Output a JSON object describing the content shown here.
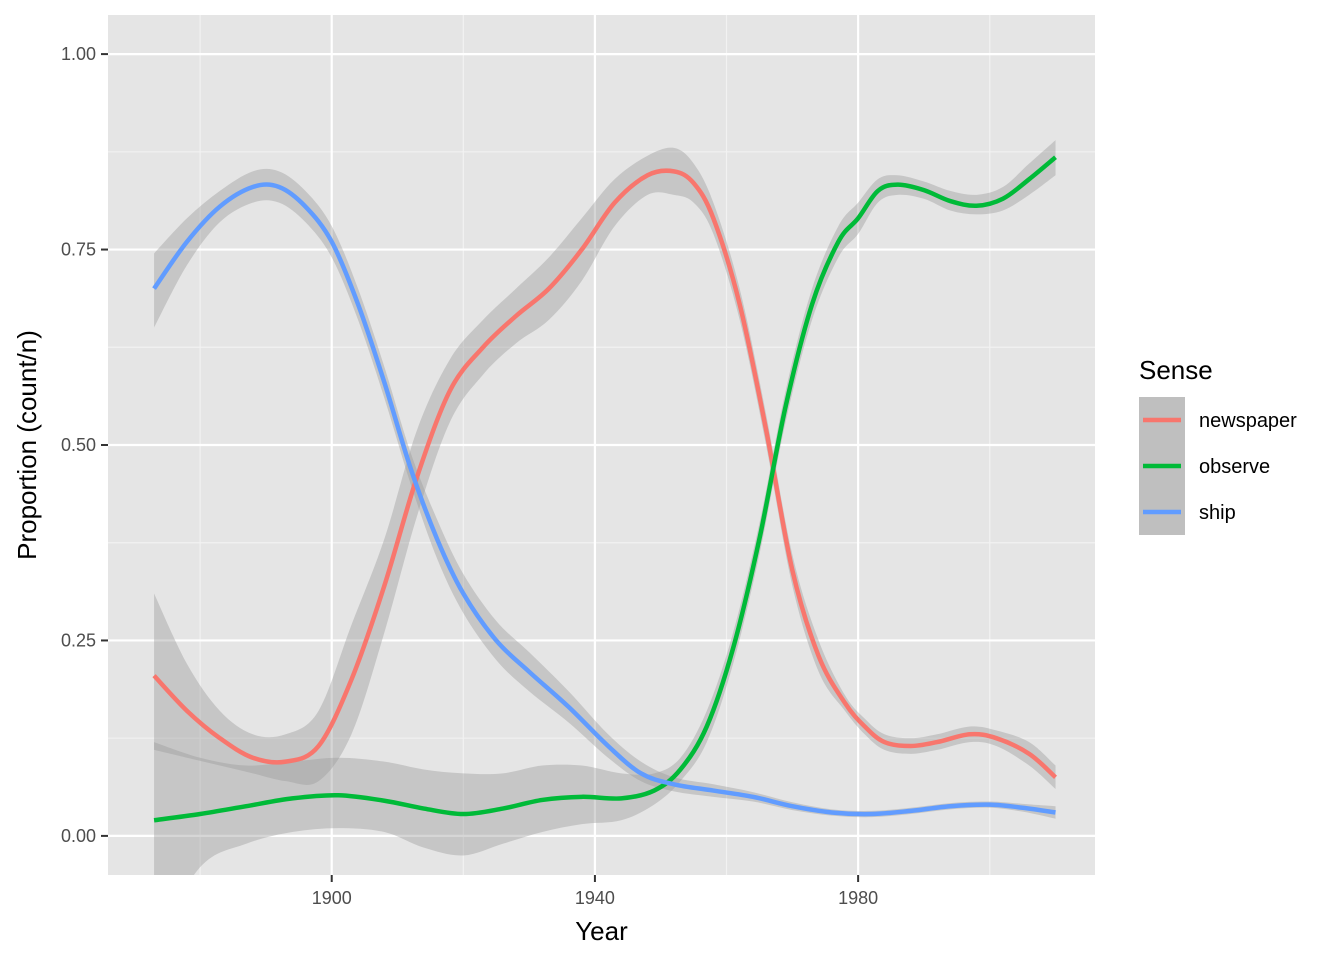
{
  "chart_data": {
    "type": "line",
    "xlabel": "Year",
    "ylabel": "Proportion (count/n)",
    "xlim": [
      1866,
      2016
    ],
    "ylim": [
      -0.05,
      1.05
    ],
    "x_ticks": [
      1900,
      1940,
      1980
    ],
    "x_tick_labels": [
      "1900",
      "1940",
      "1980"
    ],
    "y_ticks": [
      0,
      0.25,
      0.5,
      0.75,
      1
    ],
    "y_tick_labels": [
      "0.00",
      "0.25",
      "0.50",
      "0.75",
      "1.00"
    ],
    "grid": true,
    "legend": {
      "title": "Sense",
      "position": "right"
    },
    "series": [
      {
        "name": "newspaper",
        "color": "#F8766D",
        "points": [
          [
            1873,
            0.205,
            0.11,
            0.31
          ],
          [
            1878,
            0.16,
            0.1,
            0.22
          ],
          [
            1883,
            0.125,
            0.09,
            0.16
          ],
          [
            1888,
            0.1,
            0.08,
            0.13
          ],
          [
            1893,
            0.095,
            0.07,
            0.13
          ],
          [
            1898,
            0.115,
            0.07,
            0.16
          ],
          [
            1903,
            0.2,
            0.13,
            0.27
          ],
          [
            1908,
            0.32,
            0.26,
            0.38
          ],
          [
            1913,
            0.46,
            0.41,
            0.52
          ],
          [
            1918,
            0.57,
            0.53,
            0.61
          ],
          [
            1923,
            0.625,
            0.59,
            0.66
          ],
          [
            1928,
            0.665,
            0.63,
            0.7
          ],
          [
            1933,
            0.7,
            0.66,
            0.74
          ],
          [
            1938,
            0.75,
            0.71,
            0.79
          ],
          [
            1943,
            0.81,
            0.78,
            0.84
          ],
          [
            1948,
            0.845,
            0.82,
            0.87
          ],
          [
            1952,
            0.85,
            0.82,
            0.88
          ],
          [
            1955,
            0.835,
            0.81,
            0.86
          ],
          [
            1958,
            0.79,
            0.77,
            0.81
          ],
          [
            1962,
            0.68,
            0.66,
            0.7
          ],
          [
            1966,
            0.52,
            0.5,
            0.54
          ],
          [
            1970,
            0.34,
            0.32,
            0.36
          ],
          [
            1974,
            0.23,
            0.21,
            0.25
          ],
          [
            1978,
            0.17,
            0.16,
            0.18
          ],
          [
            1981,
            0.14,
            0.13,
            0.15
          ],
          [
            1984,
            0.12,
            0.11,
            0.13
          ],
          [
            1988,
            0.115,
            0.105,
            0.125
          ],
          [
            1992,
            0.12,
            0.11,
            0.13
          ],
          [
            1997,
            0.13,
            0.12,
            0.14
          ],
          [
            2001,
            0.125,
            0.115,
            0.135
          ],
          [
            2006,
            0.105,
            0.09,
            0.12
          ],
          [
            2010,
            0.075,
            0.06,
            0.09
          ]
        ]
      },
      {
        "name": "observe",
        "color": "#00BA38",
        "points": [
          [
            1873,
            0.02,
            -0.14,
            0.12
          ],
          [
            1880,
            0.028,
            -0.04,
            0.1
          ],
          [
            1887,
            0.038,
            -0.01,
            0.09
          ],
          [
            1894,
            0.048,
            0.005,
            0.095
          ],
          [
            1901,
            0.052,
            0.01,
            0.1
          ],
          [
            1908,
            0.045,
            0.005,
            0.095
          ],
          [
            1914,
            0.035,
            -0.015,
            0.085
          ],
          [
            1920,
            0.028,
            -0.025,
            0.08
          ],
          [
            1926,
            0.035,
            -0.01,
            0.08
          ],
          [
            1932,
            0.046,
            0.005,
            0.09
          ],
          [
            1938,
            0.05,
            0.015,
            0.09
          ],
          [
            1944,
            0.048,
            0.02,
            0.08
          ],
          [
            1949,
            0.058,
            0.04,
            0.08
          ],
          [
            1953,
            0.085,
            0.07,
            0.1
          ],
          [
            1957,
            0.14,
            0.12,
            0.16
          ],
          [
            1961,
            0.24,
            0.22,
            0.26
          ],
          [
            1965,
            0.38,
            0.36,
            0.4
          ],
          [
            1969,
            0.55,
            0.53,
            0.57
          ],
          [
            1973,
            0.68,
            0.66,
            0.7
          ],
          [
            1977,
            0.76,
            0.74,
            0.78
          ],
          [
            1980,
            0.79,
            0.77,
            0.81
          ],
          [
            1983,
            0.825,
            0.81,
            0.84
          ],
          [
            1986,
            0.833,
            0.82,
            0.845
          ],
          [
            1990,
            0.826,
            0.815,
            0.837
          ],
          [
            1994,
            0.812,
            0.8,
            0.825
          ],
          [
            1998,
            0.806,
            0.795,
            0.82
          ],
          [
            2002,
            0.815,
            0.8,
            0.83
          ],
          [
            2006,
            0.84,
            0.82,
            0.86
          ],
          [
            2010,
            0.868,
            0.845,
            0.89
          ]
        ]
      },
      {
        "name": "ship",
        "color": "#619CFF",
        "points": [
          [
            1873,
            0.7,
            0.65,
            0.745
          ],
          [
            1878,
            0.76,
            0.73,
            0.79
          ],
          [
            1883,
            0.805,
            0.785,
            0.825
          ],
          [
            1888,
            0.83,
            0.81,
            0.85
          ],
          [
            1892,
            0.83,
            0.81,
            0.85
          ],
          [
            1896,
            0.805,
            0.785,
            0.825
          ],
          [
            1900,
            0.76,
            0.74,
            0.78
          ],
          [
            1904,
            0.68,
            0.66,
            0.7
          ],
          [
            1908,
            0.58,
            0.56,
            0.6
          ],
          [
            1912,
            0.47,
            0.45,
            0.49
          ],
          [
            1916,
            0.38,
            0.355,
            0.405
          ],
          [
            1920,
            0.31,
            0.285,
            0.335
          ],
          [
            1925,
            0.25,
            0.225,
            0.275
          ],
          [
            1930,
            0.21,
            0.185,
            0.235
          ],
          [
            1936,
            0.165,
            0.145,
            0.185
          ],
          [
            1942,
            0.115,
            0.1,
            0.13
          ],
          [
            1947,
            0.08,
            0.07,
            0.095
          ],
          [
            1952,
            0.066,
            0.057,
            0.075
          ],
          [
            1958,
            0.058,
            0.05,
            0.066
          ],
          [
            1964,
            0.05,
            0.044,
            0.056
          ],
          [
            1970,
            0.038,
            0.033,
            0.043
          ],
          [
            1976,
            0.03,
            0.026,
            0.034
          ],
          [
            1982,
            0.028,
            0.024,
            0.032
          ],
          [
            1988,
            0.032,
            0.028,
            0.036
          ],
          [
            1994,
            0.038,
            0.034,
            0.042
          ],
          [
            2000,
            0.04,
            0.036,
            0.044
          ],
          [
            2005,
            0.036,
            0.031,
            0.041
          ],
          [
            2010,
            0.03,
            0.022,
            0.038
          ]
        ]
      }
    ]
  }
}
